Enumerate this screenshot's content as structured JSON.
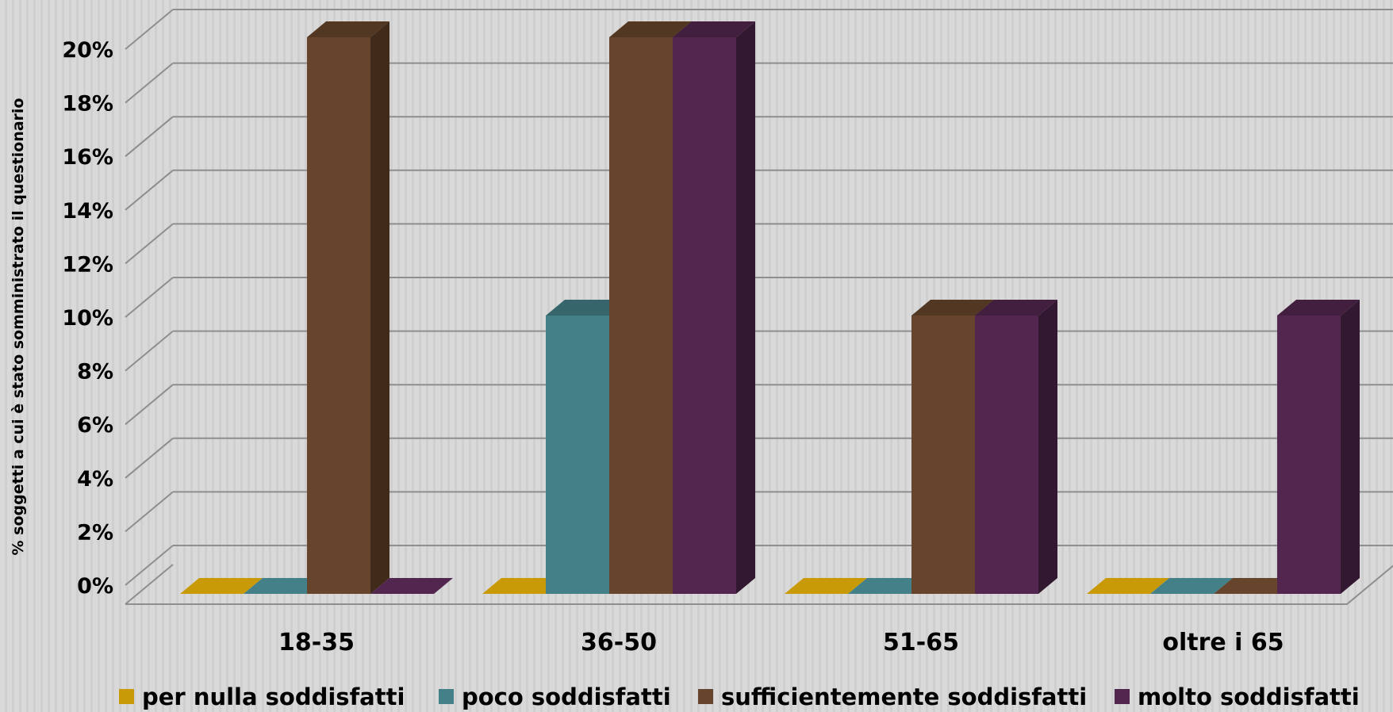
{
  "chart_data": {
    "type": "bar",
    "title": "",
    "xlabel": "",
    "ylabel": "% soggetti a cui è stato somministrato il questionario",
    "categories": [
      "18-35",
      "36-50",
      "51-65",
      "oltre i 65"
    ],
    "ylim": [
      0,
      20
    ],
    "ytick_labels": [
      "0%",
      "2%",
      "4%",
      "6%",
      "8%",
      "10%",
      "12%",
      "14%",
      "16%",
      "18%",
      "20%"
    ],
    "grid": true,
    "legend_position": "bottom",
    "series": [
      {
        "name": "per nulla soddisfatti",
        "values": [
          0,
          0,
          0,
          0
        ],
        "color": "#c99a07"
      },
      {
        "name": "poco soddisfatti",
        "values": [
          0,
          10,
          0,
          0
        ],
        "color": "#448087"
      },
      {
        "name": "sufficientemente soddisfatti",
        "values": [
          20,
          20,
          10,
          0
        ],
        "color": "#67452c"
      },
      {
        "name": "molto soddisfatti",
        "values": [
          0,
          20,
          10,
          10
        ],
        "color": "#52264f"
      }
    ]
  }
}
